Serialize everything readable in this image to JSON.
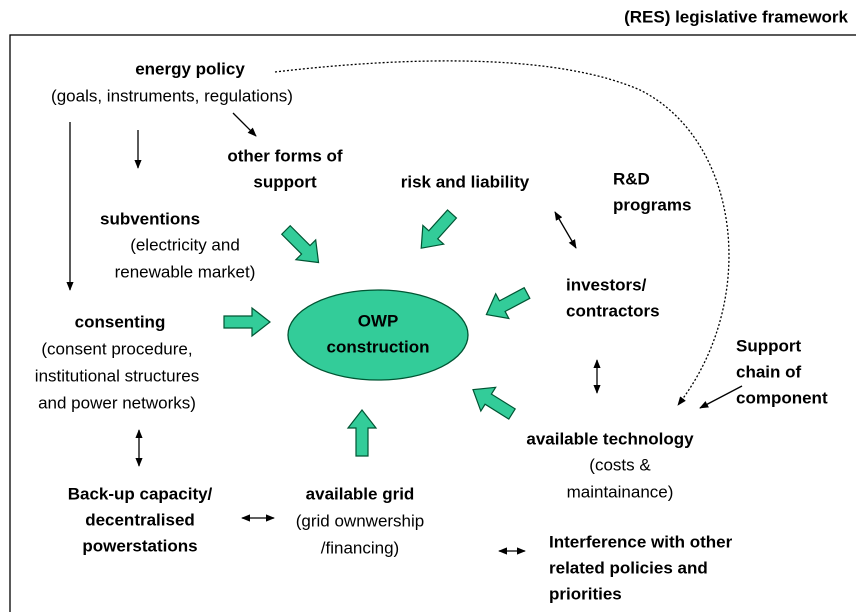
{
  "frame_label": "(RES) legislative framework",
  "center": {
    "lines": [
      "OWP",
      "construction"
    ]
  },
  "nodes": [
    {
      "title": [
        "energy policy"
      ],
      "subtitle": [
        "(goals, instruments, regulations)"
      ]
    },
    {
      "title": [
        "other forms of",
        "support"
      ],
      "subtitle": []
    },
    {
      "title": [
        "risk and liability"
      ],
      "subtitle": []
    },
    {
      "title": [
        "R&D",
        "programs"
      ],
      "subtitle": []
    },
    {
      "title": [
        "subventions"
      ],
      "subtitle": [
        "(electricity and",
        "renewable market)"
      ]
    },
    {
      "title": [
        "investors/",
        "contractors"
      ],
      "subtitle": []
    },
    {
      "title": [
        "consenting"
      ],
      "subtitle": [
        "(consent procedure,",
        "institutional structures",
        "and power networks)"
      ]
    },
    {
      "title": [
        "Support",
        "chain of",
        "component"
      ],
      "subtitle": []
    },
    {
      "title": [
        "available technology"
      ],
      "subtitle": [
        "(costs &",
        "maintainance)"
      ]
    },
    {
      "title": [
        "Back-up capacity/",
        "decentralised",
        "powerstations"
      ],
      "subtitle": []
    },
    {
      "title": [
        "available grid"
      ],
      "subtitle": [
        "(grid ownwership",
        "/financing)"
      ]
    },
    {
      "title": [
        "Interference with other",
        "related  policies and",
        "priorities"
      ],
      "subtitle": []
    }
  ]
}
